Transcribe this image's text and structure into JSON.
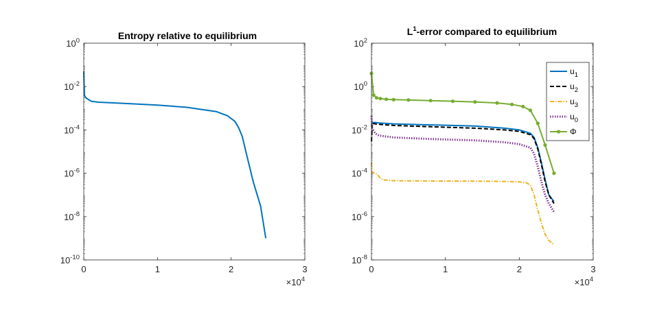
{
  "chart_data": [
    {
      "type": "line",
      "title": "Entropy relative to equilibrium",
      "title_parts": {
        "prefix": "",
        "sup": "",
        "suffix": "Entropy relative to equilibrium"
      },
      "y_scale": "log",
      "x_range": [
        0,
        30000
      ],
      "y_exp_range": [
        -10,
        0
      ],
      "x_ticks": [
        "0",
        "1",
        "2",
        "3"
      ],
      "x_tick_values": [
        0,
        10000,
        20000,
        30000
      ],
      "y_tick_exponents": [
        -10,
        -8,
        -6,
        -4,
        -2,
        0
      ],
      "x_multiplier": {
        "base": "×10",
        "exp": "4"
      },
      "tick_base": "10",
      "series": [
        {
          "color": "#0072BD",
          "style": "solid",
          "marker": "none",
          "x": [
            0,
            80,
            300,
            1000,
            2000,
            5000,
            10000,
            14000,
            18000,
            19500,
            20500,
            21000,
            21500,
            22000,
            22500,
            23000,
            24000,
            24700
          ],
          "y": [
            0.05,
            0.004,
            0.003,
            0.0021,
            0.0019,
            0.0017,
            0.0014,
            0.0011,
            0.0007,
            0.00045,
            0.00025,
            0.00013,
            5e-05,
            1e-05,
            2e-06,
            4e-07,
            3e-08,
            1e-09
          ]
        }
      ]
    },
    {
      "type": "line",
      "title": "L1-error compared to equilibrium",
      "title_parts": {
        "prefix": "L",
        "sup": "1",
        "suffix": "-error compared to equilibrium"
      },
      "y_scale": "log",
      "x_range": [
        0,
        30000
      ],
      "y_exp_range": [
        -8,
        2
      ],
      "x_ticks": [
        "0",
        "1",
        "2",
        "3"
      ],
      "x_tick_values": [
        0,
        10000,
        20000,
        30000
      ],
      "y_tick_exponents": [
        -8,
        -6,
        -4,
        -2,
        0,
        2
      ],
      "x_multiplier": {
        "base": "×10",
        "exp": "4"
      },
      "tick_base": "10",
      "legend_position": "top-right",
      "series": [
        {
          "name": "u",
          "sub": "1",
          "color": "#0072BD",
          "style": "solid",
          "marker": "none",
          "x": [
            0,
            100,
            500,
            1000,
            3000,
            8000,
            14000,
            18000,
            20000,
            21500,
            22000,
            22500,
            23000,
            23500,
            24000,
            24700
          ],
          "y": [
            0.015,
            0.022,
            0.022,
            0.021,
            0.019,
            0.017,
            0.015,
            0.012,
            0.01,
            0.007,
            0.0045,
            0.0015,
            0.0003,
            5e-05,
            1e-05,
            5e-06
          ]
        },
        {
          "name": "u",
          "sub": "2",
          "color": "#000000",
          "style": "dashed",
          "marker": "none",
          "x": [
            0,
            100,
            500,
            1000,
            3000,
            8000,
            14000,
            18000,
            20000,
            21500,
            22000,
            22500,
            23000,
            23500,
            24000,
            24700
          ],
          "y": [
            0.003,
            0.02,
            0.019,
            0.018,
            0.016,
            0.014,
            0.012,
            0.01,
            0.0085,
            0.006,
            0.004,
            0.0013,
            0.00025,
            4e-05,
            1e-05,
            4e-06
          ]
        },
        {
          "name": "u",
          "sub": "3",
          "color": "#EDB120",
          "style": "dashdot",
          "marker": "none",
          "x": [
            0,
            100,
            500,
            800,
            1000,
            1500,
            3000,
            8000,
            14000,
            18000,
            20000,
            21000,
            21500,
            22000,
            22500,
            23000,
            23500,
            24000,
            24700
          ],
          "y": [
            0.0003,
            0.00011,
            0.0001,
            9e-05,
            7e-05,
            5e-05,
            4.5e-05,
            4.4e-05,
            4.3e-05,
            4.2e-05,
            4e-05,
            3.6e-05,
            2.8e-05,
            1e-05,
            2e-06,
            5e-07,
            1.5e-07,
            8e-08,
            5e-08
          ]
        },
        {
          "name": "u",
          "sub": "0",
          "color": "#7E2F8E",
          "style": "dotted",
          "marker": "none",
          "x": [
            0,
            100,
            500,
            1000,
            3000,
            8000,
            14000,
            18000,
            20000,
            21500,
            22000,
            22500,
            23000,
            23500,
            24000,
            24700
          ],
          "y": [
            0.045,
            0.012,
            0.007,
            0.0055,
            0.0045,
            0.0038,
            0.0033,
            0.0027,
            0.0022,
            0.0015,
            0.0008,
            0.0002,
            4e-05,
            1e-05,
            4e-06,
            1.6e-06
          ]
        },
        {
          "name": "Φ",
          "sub": "",
          "color": "#77AC30",
          "style": "solid",
          "marker": "dot",
          "x": [
            0,
            300,
            700,
            1200,
            2000,
            3000,
            5000,
            8000,
            11000,
            14000,
            17000,
            19000,
            20500,
            21500,
            22500,
            23500,
            24700
          ],
          "y": [
            4,
            0.4,
            0.3,
            0.28,
            0.26,
            0.25,
            0.24,
            0.225,
            0.21,
            0.195,
            0.175,
            0.15,
            0.12,
            0.08,
            0.02,
            0.002,
            0.0001
          ]
        }
      ]
    }
  ]
}
